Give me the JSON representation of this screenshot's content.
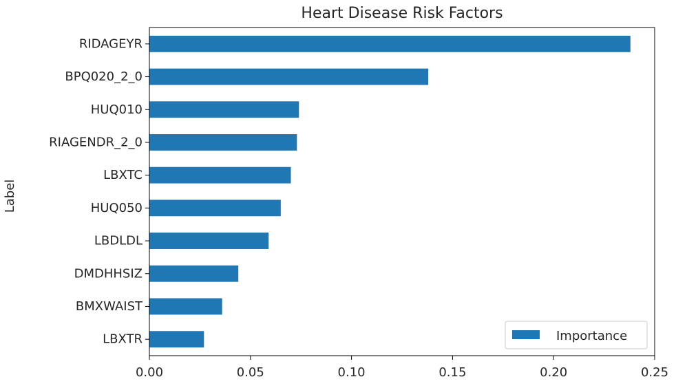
{
  "chart_data": {
    "type": "bar",
    "orientation": "horizontal",
    "title": "Heart Disease Risk Factors",
    "xlabel": "",
    "ylabel": "Label",
    "categories": [
      "RIDAGEYR",
      "BPQ020_2_0",
      "HUQ010",
      "RIAGENDR_2_0",
      "LBXTC",
      "HUQ050",
      "LBDLDL",
      "DMDHHSIZ",
      "BMXWAIST",
      "LBXTR"
    ],
    "series": [
      {
        "name": "Importance",
        "color": "#1f77b4",
        "values": [
          0.238,
          0.138,
          0.074,
          0.073,
          0.07,
          0.065,
          0.059,
          0.044,
          0.036,
          0.027
        ]
      }
    ],
    "xlim": [
      0,
      0.25
    ],
    "xticks": [
      "0.00",
      "0.05",
      "0.10",
      "0.15",
      "0.20",
      "0.25"
    ],
    "grid": false,
    "legend_position": "lower-right"
  }
}
